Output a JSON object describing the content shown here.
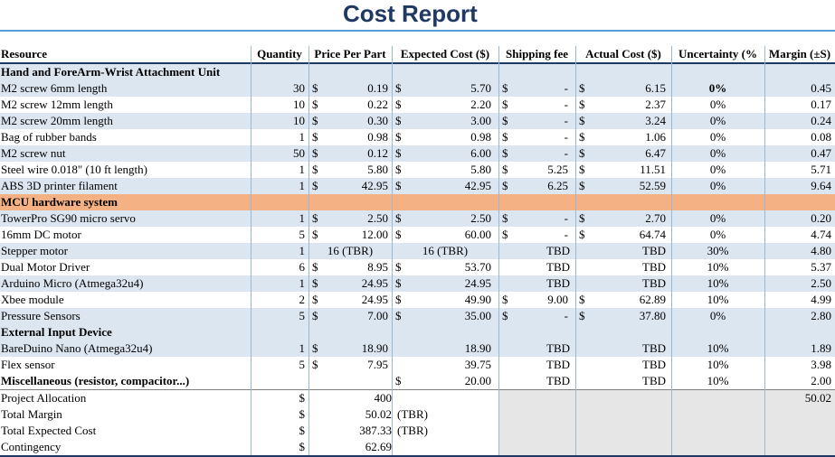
{
  "title": "Cost Report",
  "headers": {
    "resource": "Resource",
    "quantity": "Quantity",
    "price": "Price Per Part",
    "expected": "Expected Cost ($)",
    "shipping": "Shipping fee",
    "actual": "Actual Cost ($)",
    "uncertainty": "Uncertainty (%",
    "margin": "Margin (±S)"
  },
  "sections": [
    {
      "name": "Hand and ForeArm-Wrist Attachment Unit",
      "rows": [
        {
          "resource": "M2 screw 6mm length",
          "qty": "30",
          "price": "0.19",
          "expected": "5.70",
          "shipping": "-",
          "actual": "6.15",
          "uncert": "0%",
          "margin": "0.45"
        },
        {
          "resource": "M2 screw 12mm length",
          "qty": "10",
          "price": "0.22",
          "expected": "2.20",
          "shipping": "-",
          "actual": "2.37",
          "uncert": "0%",
          "margin": "0.17"
        },
        {
          "resource": "M2 screw 20mm length",
          "qty": "10",
          "price": "0.30",
          "expected": "3.00",
          "shipping": "-",
          "actual": "3.24",
          "uncert": "0%",
          "margin": "0.24"
        },
        {
          "resource": "Bag of rubber bands",
          "qty": "1",
          "price": "0.98",
          "expected": "0.98",
          "shipping": "-",
          "actual": "1.06",
          "uncert": "0%",
          "margin": "0.08"
        },
        {
          "resource": "M2 screw nut",
          "qty": "50",
          "price": "0.12",
          "expected": "6.00",
          "shipping": "-",
          "actual": "6.47",
          "uncert": "0%",
          "margin": "0.47"
        },
        {
          "resource": "Steel wire 0.018\" (10 ft length)",
          "qty": "1",
          "price": "5.80",
          "expected": "5.80",
          "shipping": "5.25",
          "actual": "11.51",
          "uncert": "0%",
          "margin": "5.71"
        },
        {
          "resource": "ABS 3D printer filament",
          "qty": "1",
          "price": "42.95",
          "expected": "42.95",
          "shipping": "6.25",
          "actual": "52.59",
          "uncert": "0%",
          "margin": "9.64"
        }
      ]
    },
    {
      "name": "MCU hardware system",
      "rows": [
        {
          "resource": "TowerPro SG90 micro servo",
          "qty": "1",
          "price": "2.50",
          "expected": "2.50",
          "shipping": "-",
          "actual": "2.70",
          "uncert": "0%",
          "margin": "0.20"
        },
        {
          "resource": "16mm DC motor",
          "qty": "5",
          "price": "12.00",
          "expected": "60.00",
          "shipping": "-",
          "actual": "64.74",
          "uncert": "0%",
          "margin": "4.74"
        },
        {
          "resource": "Stepper motor",
          "qty": "1",
          "price_text": "16 (TBR)",
          "expected_text": "16 (TBR)",
          "shipping_text": "TBD",
          "actual_text": "TBD",
          "uncert": "30%",
          "margin": "4.80"
        },
        {
          "resource": "Dual Motor Driver",
          "qty": "6",
          "price": "8.95",
          "expected": "53.70",
          "shipping_text": "TBD",
          "actual_text": "TBD",
          "uncert": "10%",
          "margin": "5.37"
        },
        {
          "resource": "Arduino Micro (Atmega32u4)",
          "qty": "1",
          "price": "24.95",
          "expected": "24.95",
          "shipping_text": "TBD",
          "actual_text": "TBD",
          "uncert": "10%",
          "margin": "2.50"
        },
        {
          "resource": "Xbee module",
          "qty": "2",
          "price": "24.95",
          "expected": "49.90",
          "shipping": "9.00",
          "actual": "62.89",
          "uncert": "10%",
          "margin": "4.99"
        },
        {
          "resource": "Pressure Sensors",
          "qty": "5",
          "price": "7.00",
          "expected": "35.00",
          "shipping": "-",
          "actual": "37.80",
          "uncert": "0%",
          "margin": "2.80"
        }
      ]
    },
    {
      "name": "External Input Device",
      "rows": [
        {
          "resource": "BareDuino Nano (Atmega32u4)",
          "qty": "1",
          "price": "18.90",
          "expected": "18.90",
          "shipping_text": "TBD",
          "actual_text": "TBD",
          "uncert": "10%",
          "margin": "1.89"
        },
        {
          "resource": "Flex sensor",
          "qty": "5",
          "price": "7.95",
          "expected": "39.75",
          "shipping_text": "TBD",
          "actual_text": "TBD",
          "uncert": "10%",
          "margin": "3.98"
        }
      ]
    }
  ],
  "misc": {
    "resource": "Miscellaneous (resistor, compacitor...)",
    "expected": "20.00",
    "shipping_text": "TBD",
    "actual_text": "TBD",
    "uncert": "10%",
    "margin": "2.00"
  },
  "summary": [
    {
      "label": "Project Allocation",
      "value": "400",
      "note": "",
      "margin": "50.02"
    },
    {
      "label": "Total Margin",
      "value": "50.02",
      "note": "(TBR)",
      "margin": ""
    },
    {
      "label": "Total Expected Cost",
      "value": "387.33",
      "note": "(TBR)",
      "margin": ""
    },
    {
      "label": "Contingency",
      "value": "62.69",
      "note": "",
      "margin": ""
    }
  ],
  "currency": "$",
  "colors": {
    "title": "#1f3864",
    "header_rule": "#1f3864",
    "band": "#dce6f1",
    "orange": "#f4b183",
    "grey": "#e7e6e6"
  }
}
